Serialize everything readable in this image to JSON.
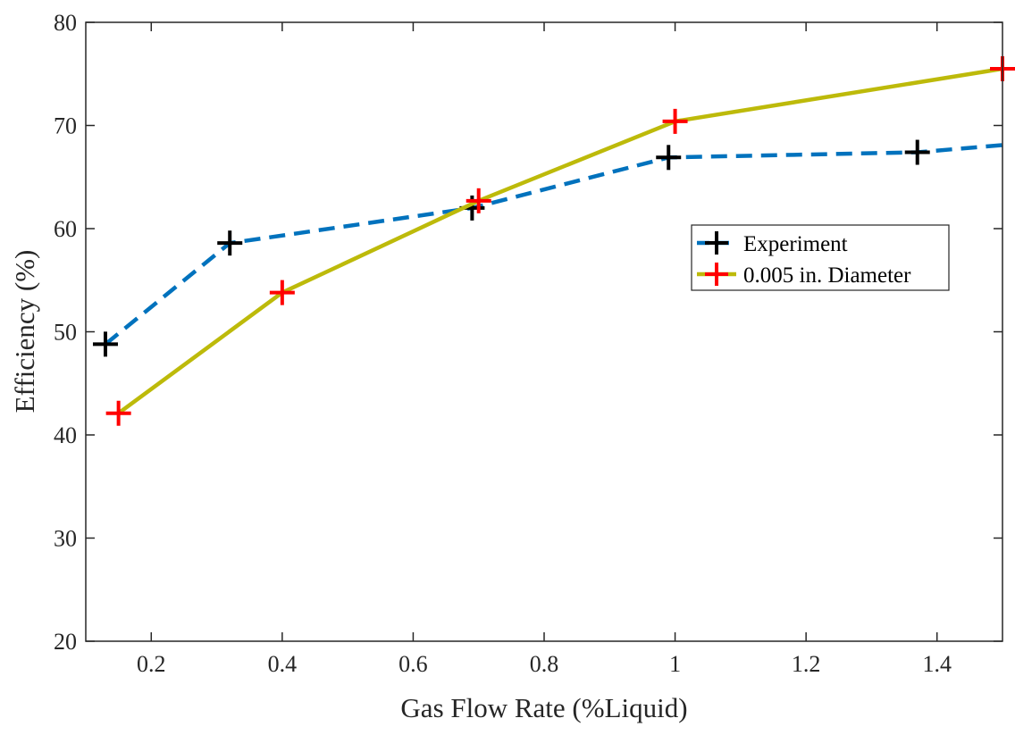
{
  "chart_data": {
    "type": "line",
    "title": "",
    "xlabel": "Gas Flow Rate (%Liquid)",
    "ylabel": "Efficiency (%)",
    "xlim": [
      0.1,
      1.5
    ],
    "ylim": [
      20,
      80
    ],
    "xticks": [
      0.2,
      0.4,
      0.6,
      0.8,
      1,
      1.2,
      1.4
    ],
    "xtick_labels": [
      "0.2",
      "0.4",
      "0.6",
      "0.8",
      "1",
      "1.2",
      "1.4"
    ],
    "yticks": [
      20,
      30,
      40,
      50,
      60,
      70,
      80
    ],
    "ytick_labels": [
      "20",
      "30",
      "40",
      "50",
      "60",
      "70",
      "80"
    ],
    "grid": false,
    "legend_position": "right",
    "series": [
      {
        "name": "Experiment",
        "line_style": "dashed",
        "line_color": "#0072BD",
        "marker": "plus",
        "marker_color": "#000000",
        "x": [
          0.13,
          0.32,
          0.69,
          0.99,
          1.37,
          1.5
        ],
        "y": [
          48.8,
          58.6,
          62.0,
          66.9,
          67.4,
          68.1
        ],
        "marker_indices": [
          0,
          1,
          2,
          3,
          4
        ]
      },
      {
        "name": "0.005 in. Diameter",
        "line_style": "solid",
        "line_color": "#BDBA0A",
        "marker": "plus",
        "marker_color": "#FF0000",
        "x": [
          0.15,
          0.4,
          0.7,
          1.0,
          1.5
        ],
        "y": [
          42.1,
          53.8,
          62.7,
          70.4,
          75.5
        ],
        "marker_indices": [
          0,
          1,
          2,
          3,
          4
        ]
      }
    ]
  }
}
